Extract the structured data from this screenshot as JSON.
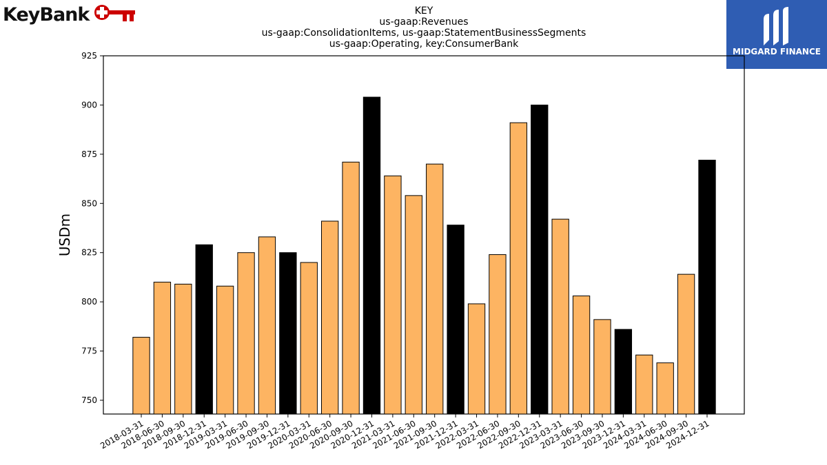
{
  "logos": {
    "left": {
      "text": "KeyBank",
      "icon": "key-icon",
      "color": "#cc0000"
    },
    "right": {
      "text": "MIDGARD FINANCE",
      "background": "#2f5db3"
    }
  },
  "chart_data": {
    "type": "bar",
    "title_lines": [
      "KEY",
      "us-gaap:Revenues",
      "us-gaap:ConsolidationItems, us-gaap:StatementBusinessSegments",
      "us-gaap:Operating, key:ConsumerBank"
    ],
    "ylabel": "USDm",
    "xlabel": "",
    "ylim": [
      743,
      925
    ],
    "yticks": [
      750,
      775,
      800,
      825,
      850,
      875,
      900,
      925
    ],
    "grid": false,
    "colors": {
      "quarter": "#fdb462",
      "year_end": "#000000",
      "edge": "#000000"
    },
    "categories": [
      "2018-03-31",
      "2018-06-30",
      "2018-09-30",
      "2018-12-31",
      "2019-03-31",
      "2019-06-30",
      "2019-09-30",
      "2019-12-31",
      "2020-03-31",
      "2020-06-30",
      "2020-09-30",
      "2020-12-31",
      "2021-03-31",
      "2021-06-30",
      "2021-09-30",
      "2021-12-31",
      "2022-03-31",
      "2022-06-30",
      "2022-09-30",
      "2022-12-31",
      "2023-03-31",
      "2023-06-30",
      "2023-09-30",
      "2023-12-31",
      "2024-03-31",
      "2024-06-30",
      "2024-09-30",
      "2024-12-31"
    ],
    "values": [
      782,
      810,
      809,
      829,
      808,
      825,
      833,
      825,
      820,
      841,
      871,
      904,
      864,
      854,
      870,
      839,
      799,
      824,
      891,
      900,
      842,
      803,
      791,
      786,
      773,
      769,
      814,
      872
    ]
  }
}
